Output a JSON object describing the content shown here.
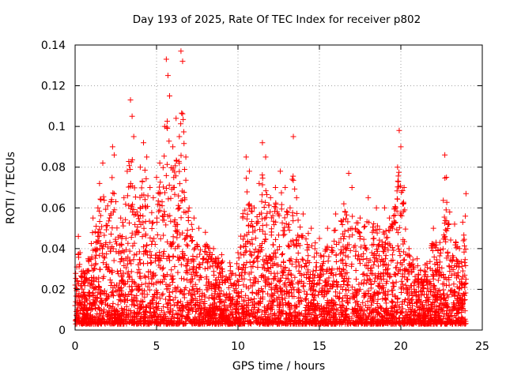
{
  "chart_data": {
    "type": "scatter",
    "title": "Day 193 of 2025, Rate Of TEC Index for receiver p802",
    "xlabel": "GPS time / hours",
    "ylabel": "ROTI / TECUs",
    "xlim": [
      0,
      25
    ],
    "ylim": [
      0,
      0.14
    ],
    "x_ticks": [
      0,
      5,
      10,
      15,
      20,
      25
    ],
    "x_tick_labels": [
      "0",
      "5",
      "10",
      "15",
      "20",
      "25"
    ],
    "y_ticks": [
      0,
      0.02,
      0.04,
      0.06,
      0.08,
      0.1,
      0.12,
      0.14
    ],
    "y_tick_labels": [
      "0",
      "0.02",
      "0.04",
      "0.06",
      "0.08",
      "0.1",
      "0.12",
      "0.14"
    ],
    "grid": true,
    "marker": "+",
    "marker_color": "#ff0000",
    "data_x_range": [
      0,
      24
    ],
    "series": [
      {
        "points": [
          [
            0.1,
            0.031
          ],
          [
            0.2,
            0.046
          ],
          [
            0.3,
            0.038
          ],
          [
            0.5,
            0.029
          ],
          [
            0.8,
            0.035
          ],
          [
            1.1,
            0.055
          ],
          [
            1.4,
            0.06
          ],
          [
            1.5,
            0.072
          ],
          [
            1.7,
            0.082
          ],
          [
            2.0,
            0.061
          ],
          [
            2.3,
            0.09
          ],
          [
            2.4,
            0.086
          ],
          [
            2.5,
            0.063
          ],
          [
            2.8,
            0.055
          ],
          [
            3.0,
            0.065
          ],
          [
            3.2,
            0.078
          ],
          [
            3.4,
            0.113
          ],
          [
            3.5,
            0.105
          ],
          [
            3.6,
            0.095
          ],
          [
            3.8,
            0.058
          ],
          [
            4.0,
            0.08
          ],
          [
            4.2,
            0.092
          ],
          [
            4.4,
            0.085
          ],
          [
            4.6,
            0.07
          ],
          [
            4.8,
            0.065
          ],
          [
            5.0,
            0.075
          ],
          [
            5.2,
            0.082
          ],
          [
            5.5,
            0.1
          ],
          [
            5.6,
            0.133
          ],
          [
            5.7,
            0.125
          ],
          [
            5.8,
            0.115
          ],
          [
            6.0,
            0.09
          ],
          [
            6.2,
            0.104
          ],
          [
            6.4,
            0.095
          ],
          [
            6.5,
            0.137
          ],
          [
            6.6,
            0.132
          ],
          [
            6.8,
            0.085
          ],
          [
            7.0,
            0.06
          ],
          [
            7.3,
            0.055
          ],
          [
            7.6,
            0.05
          ],
          [
            8.0,
            0.048
          ],
          [
            8.5,
            0.04
          ],
          [
            9.0,
            0.037
          ],
          [
            9.5,
            0.033
          ],
          [
            10.0,
            0.038
          ],
          [
            10.5,
            0.085
          ],
          [
            10.7,
            0.078
          ],
          [
            11.0,
            0.06
          ],
          [
            11.3,
            0.072
          ],
          [
            11.5,
            0.092
          ],
          [
            11.7,
            0.085
          ],
          [
            12.0,
            0.065
          ],
          [
            12.3,
            0.07
          ],
          [
            12.6,
            0.078
          ],
          [
            12.9,
            0.07
          ],
          [
            13.2,
            0.06
          ],
          [
            13.4,
            0.095
          ],
          [
            13.6,
            0.065
          ],
          [
            14.0,
            0.057
          ],
          [
            14.5,
            0.05
          ],
          [
            15.0,
            0.045
          ],
          [
            15.5,
            0.05
          ],
          [
            16.0,
            0.057
          ],
          [
            16.5,
            0.062
          ],
          [
            16.8,
            0.077
          ],
          [
            17.0,
            0.07
          ],
          [
            17.5,
            0.055
          ],
          [
            18.0,
            0.065
          ],
          [
            18.5,
            0.06
          ],
          [
            19.0,
            0.06
          ],
          [
            19.3,
            0.055
          ],
          [
            19.8,
            0.08
          ],
          [
            19.9,
            0.098
          ],
          [
            20.0,
            0.09
          ],
          [
            20.2,
            0.07
          ],
          [
            20.5,
            0.04
          ],
          [
            21.0,
            0.035
          ],
          [
            21.5,
            0.032
          ],
          [
            22.0,
            0.05
          ],
          [
            22.4,
            0.043
          ],
          [
            22.7,
            0.086
          ],
          [
            22.8,
            0.075
          ],
          [
            23.0,
            0.058
          ],
          [
            23.3,
            0.052
          ],
          [
            23.6,
            0.04
          ],
          [
            23.8,
            0.053
          ],
          [
            24.0,
            0.067
          ]
        ]
      }
    ]
  }
}
